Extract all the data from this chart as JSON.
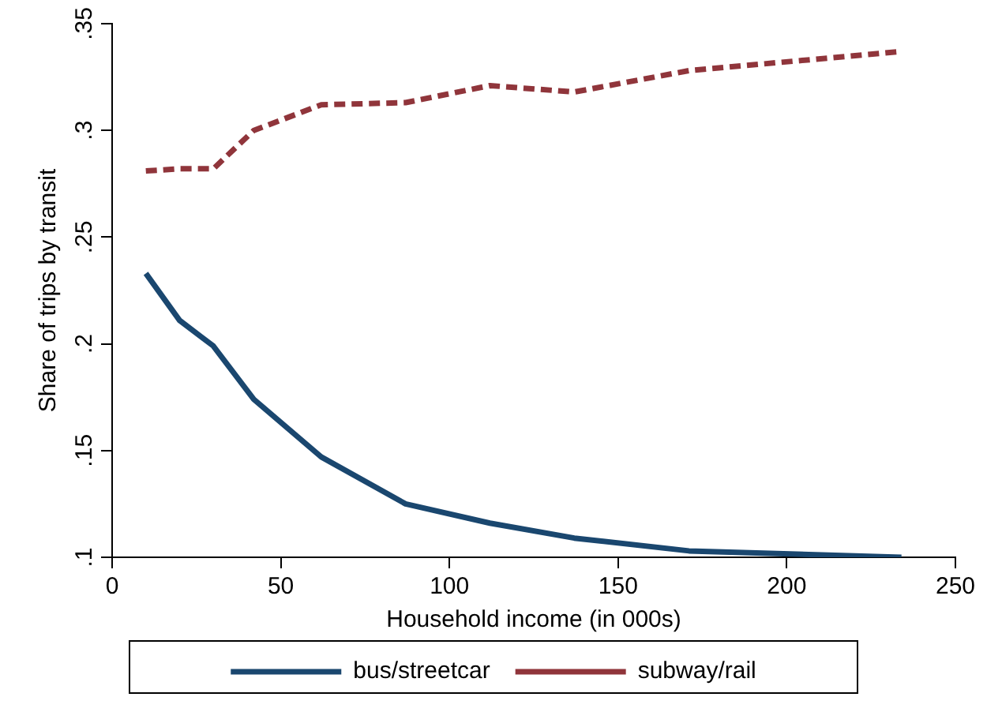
{
  "chart_data": {
    "type": "line",
    "xlabel": "Household income (in 000s)",
    "ylabel": "Share of trips by transit",
    "xlim": [
      0,
      250
    ],
    "xticks": [
      0,
      50,
      100,
      150,
      200,
      250
    ],
    "ylim": [
      0.1,
      0.35
    ],
    "yticks": [
      {
        "value": 0.1,
        "label": ".1"
      },
      {
        "value": 0.15,
        "label": ".15"
      },
      {
        "value": 0.2,
        "label": ".2"
      },
      {
        "value": 0.25,
        "label": ".25"
      },
      {
        "value": 0.3,
        "label": ".3"
      },
      {
        "value": 0.35,
        "label": ".35"
      }
    ],
    "x": [
      10,
      20,
      30,
      42,
      62,
      87,
      112,
      137,
      171,
      234
    ],
    "series": [
      {
        "name": "bus/streetcar",
        "color": "#1a476f",
        "line_style": "solid",
        "values": [
          0.233,
          0.211,
          0.199,
          0.174,
          0.147,
          0.125,
          0.116,
          0.109,
          0.103,
          0.1
        ]
      },
      {
        "name": "subway/rail",
        "color": "#90353b",
        "line_style": "dashed",
        "values": [
          0.281,
          0.282,
          0.282,
          0.3,
          0.312,
          0.313,
          0.321,
          0.318,
          0.328,
          0.337
        ]
      }
    ],
    "grid": false,
    "legend": "bottom",
    "marker": "none"
  }
}
